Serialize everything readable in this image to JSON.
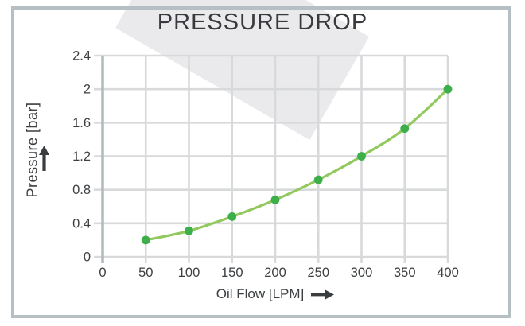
{
  "title": "PRESSURE DROP",
  "chart_data": {
    "type": "line",
    "title": "PRESSURE DROP",
    "xlabel": "Oil Flow [LPM]",
    "ylabel": "Pressure [bar]",
    "x": [
      50,
      100,
      150,
      200,
      250,
      300,
      350,
      400
    ],
    "values": [
      0.2,
      0.31,
      0.48,
      0.68,
      0.92,
      1.2,
      1.53,
      2.0
    ],
    "xlim": [
      0,
      400
    ],
    "ylim": [
      0,
      2.4
    ],
    "x_ticks": [
      0,
      50,
      100,
      150,
      200,
      250,
      300,
      350,
      400
    ],
    "y_ticks": [
      0,
      0.4,
      0.8,
      1.2,
      1.6,
      2,
      2.4
    ],
    "grid": true,
    "legend": "none",
    "line_color": "#92c95e",
    "marker_color": "#3caf4a"
  },
  "colors": {
    "grid": "#d8d9db",
    "axis": "#b2b9bd",
    "tick_text": "#3d4043",
    "title_text": "#37393c",
    "frame_border": "#b6bfc4",
    "watermark": "#eaeaec",
    "arrow": "#3a3d40"
  }
}
